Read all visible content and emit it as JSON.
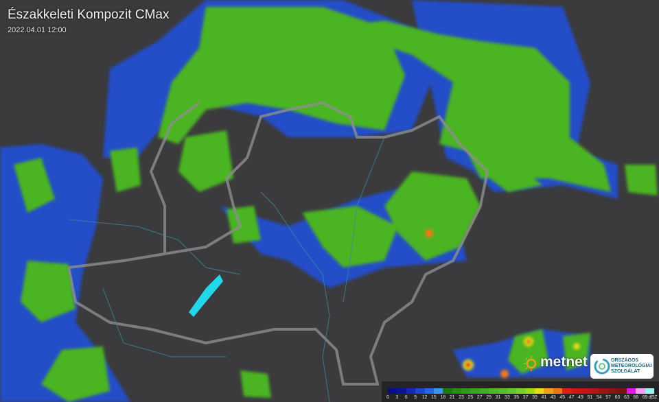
{
  "header": {
    "title": "Északkeleti Kompozit CMax",
    "timestamp": "2022.04.01 12:00"
  },
  "legend": {
    "unit": "dBZ",
    "ticks": [
      "0",
      "3",
      "6",
      "9",
      "12",
      "15",
      "18",
      "21",
      "23",
      "25",
      "27",
      "29",
      "31",
      "33",
      "35",
      "37",
      "39",
      "41",
      "43",
      "45",
      "47",
      "49",
      "51",
      "54",
      "57",
      "60",
      "63",
      "66",
      "69"
    ],
    "colors": [
      "#0a0a8c",
      "#0a1496",
      "#1428b4",
      "#1e46d2",
      "#2864e6",
      "#3c96f0",
      "#1e7814",
      "#288c14",
      "#32961e",
      "#3ca01e",
      "#46aa28",
      "#50b428",
      "#5abe28",
      "#64c828",
      "#78d228",
      "#a0dc14",
      "#e6dc14",
      "#f0a014",
      "#f07814",
      "#dc1e14",
      "#d21414",
      "#c81414",
      "#b41414",
      "#a01414",
      "#8c1414",
      "#781414",
      "#e614e6",
      "#f0a0f0",
      "#a0f0f0"
    ]
  },
  "logos": {
    "metnet": "metnet",
    "omsz": [
      "ORSZÁGOS",
      "METEOROLÓGIAI",
      "SZOLGÁLAT"
    ]
  },
  "map_colors": {
    "background": "#3b3b3d",
    "border": "#8a8a8a",
    "river": "#3a8aa0",
    "lake": "#22d8e8",
    "echo_low": "#1e46d2",
    "echo_mid": "#5abe28",
    "echo_high": "#dc1e14"
  }
}
